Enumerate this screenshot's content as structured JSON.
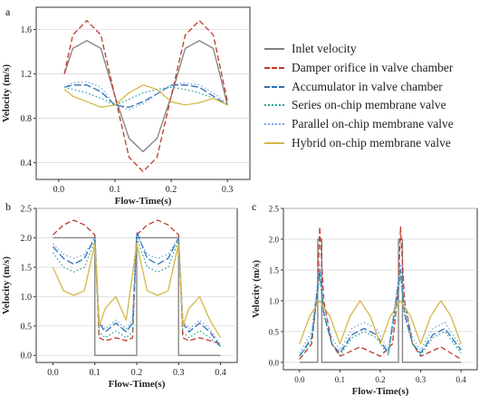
{
  "panels": {
    "a": "a",
    "b": "b",
    "c": "c"
  },
  "legend": [
    {
      "label": "Inlet velocity",
      "color": "#808080",
      "dash": "solid"
    },
    {
      "label": "Damper orifice in valve chamber",
      "color": "#c0392b",
      "dash": "dashed"
    },
    {
      "label": "Accumulator in valve chamber",
      "color": "#2e6fb7",
      "dash": "long-dash"
    },
    {
      "label": "Series on-chip membrane valve",
      "color": "#2aa198",
      "dash": "dotted"
    },
    {
      "label": "Parallel on-chip membrane valve",
      "color": "#7aa7e0",
      "dash": "dotted"
    },
    {
      "label": "Hybrid on-chip membrane valve",
      "color": "#d4b84a",
      "dash": "solid"
    }
  ],
  "chart_data": [
    {
      "id": "a",
      "type": "line",
      "xlabel": "Flow-Time(s)",
      "ylabel": "Velocity (m/s)",
      "xlim": [
        -0.04,
        0.34
      ],
      "ylim": [
        0.25,
        1.8
      ],
      "xticks": [
        0.0,
        0.1,
        0.2,
        0.3
      ],
      "xticklabels": [
        "0.0",
        "0.1",
        "0.2",
        "0.3"
      ],
      "yticks": [
        0.4,
        0.8,
        1.2,
        1.6
      ],
      "yticklabels": [
        "0.4",
        "0.8",
        "1.2",
        "1.6"
      ],
      "x": [
        0.01,
        0.025,
        0.05,
        0.075,
        0.1,
        0.125,
        0.15,
        0.175,
        0.2,
        0.225,
        0.25,
        0.275,
        0.3
      ],
      "series": [
        {
          "name": "Inlet velocity",
          "values": [
            1.2,
            1.43,
            1.5,
            1.43,
            1.0,
            0.62,
            0.5,
            0.62,
            1.0,
            1.43,
            1.5,
            1.43,
            0.92
          ]
        },
        {
          "name": "Damper orifice in valve chamber",
          "values": [
            1.2,
            1.55,
            1.68,
            1.55,
            1.0,
            0.45,
            0.32,
            0.45,
            1.0,
            1.55,
            1.68,
            1.55,
            0.95
          ]
        },
        {
          "name": "Accumulator in valve chamber",
          "values": [
            1.08,
            1.1,
            1.1,
            1.04,
            0.92,
            0.9,
            0.95,
            1.02,
            1.1,
            1.1,
            1.08,
            1.0,
            0.92
          ]
        },
        {
          "name": "Series on-chip membrane valve",
          "values": [
            1.08,
            1.06,
            1.03,
            0.98,
            0.92,
            0.97,
            1.03,
            1.06,
            1.08,
            1.06,
            1.03,
            0.98,
            0.92
          ]
        },
        {
          "name": "Parallel on-chip membrane valve",
          "values": [
            1.08,
            1.12,
            1.13,
            1.08,
            0.92,
            0.88,
            0.93,
            1.02,
            1.1,
            1.12,
            1.1,
            1.03,
            0.93
          ]
        },
        {
          "name": "Hybrid on-chip membrane valve",
          "values": [
            1.06,
            1.0,
            0.95,
            0.9,
            0.92,
            1.03,
            1.1,
            1.06,
            0.95,
            0.92,
            0.94,
            0.98,
            0.92
          ]
        }
      ]
    },
    {
      "id": "b",
      "type": "line",
      "xlabel": "Flow-Time(s)",
      "ylabel": "Velocity (m/s)",
      "xlim": [
        -0.04,
        0.44
      ],
      "ylim": [
        -0.12,
        2.5
      ],
      "xticks": [
        0.0,
        0.1,
        0.2,
        0.3,
        0.4
      ],
      "xticklabels": [
        "0.0",
        "0.1",
        "0.2",
        "0.3",
        "0.4"
      ],
      "yticks": [
        0.0,
        0.5,
        1.0,
        1.5,
        2.0,
        2.5
      ],
      "yticklabels": [
        "0.0",
        "0.5",
        "1.0",
        "1.5",
        "2.0",
        "2.5"
      ],
      "series": [
        {
          "name": "Inlet velocity",
          "x": [
            0.0,
            0.1,
            0.1,
            0.2,
            0.2,
            0.3,
            0.3,
            0.4
          ],
          "values": [
            2.0,
            2.0,
            0.0,
            0.0,
            2.0,
            2.0,
            0.0,
            0.0
          ]
        },
        {
          "name": "Damper orifice in valve chamber",
          "x": [
            0.0,
            0.025,
            0.05,
            0.075,
            0.1,
            0.11,
            0.125,
            0.15,
            0.175,
            0.19,
            0.2,
            0.225,
            0.25,
            0.275,
            0.3,
            0.31,
            0.325,
            0.35,
            0.375,
            0.4
          ],
          "values": [
            2.05,
            2.22,
            2.3,
            2.22,
            2.05,
            0.3,
            0.25,
            0.3,
            0.25,
            0.3,
            2.05,
            2.22,
            2.3,
            2.22,
            2.05,
            0.3,
            0.25,
            0.3,
            0.25,
            0.2
          ]
        },
        {
          "name": "Accumulator in valve chamber",
          "x": [
            0.0,
            0.025,
            0.05,
            0.075,
            0.1,
            0.11,
            0.125,
            0.15,
            0.175,
            0.19,
            0.2,
            0.225,
            0.25,
            0.275,
            0.3,
            0.31,
            0.325,
            0.35,
            0.375,
            0.4
          ],
          "values": [
            1.85,
            1.65,
            1.55,
            1.65,
            2.0,
            0.55,
            0.4,
            0.55,
            0.4,
            0.55,
            2.1,
            1.65,
            1.55,
            1.65,
            2.0,
            0.55,
            0.4,
            0.55,
            0.4,
            0.15
          ]
        },
        {
          "name": "Series on-chip membrane valve",
          "x": [
            0.0,
            0.025,
            0.05,
            0.075,
            0.1,
            0.11,
            0.125,
            0.15,
            0.175,
            0.19,
            0.2,
            0.225,
            0.25,
            0.275,
            0.3,
            0.31,
            0.325,
            0.35,
            0.375,
            0.4
          ],
          "values": [
            1.75,
            1.5,
            1.42,
            1.5,
            1.95,
            0.4,
            0.3,
            0.42,
            0.3,
            0.4,
            2.0,
            1.5,
            1.42,
            1.5,
            1.95,
            0.4,
            0.3,
            0.42,
            0.3,
            0.15
          ]
        },
        {
          "name": "Parallel on-chip membrane valve",
          "x": [
            0.0,
            0.025,
            0.05,
            0.075,
            0.1,
            0.11,
            0.125,
            0.15,
            0.175,
            0.19,
            0.2,
            0.225,
            0.25,
            0.275,
            0.3,
            0.31,
            0.325,
            0.35,
            0.375,
            0.4
          ],
          "values": [
            1.9,
            1.72,
            1.65,
            1.72,
            2.0,
            0.6,
            0.45,
            0.6,
            0.45,
            0.6,
            2.05,
            1.72,
            1.65,
            1.72,
            2.0,
            0.6,
            0.45,
            0.6,
            0.45,
            0.18
          ]
        },
        {
          "name": "Hybrid on-chip membrane valve",
          "x": [
            0.0,
            0.025,
            0.05,
            0.075,
            0.1,
            0.11,
            0.125,
            0.15,
            0.175,
            0.2,
            0.225,
            0.25,
            0.275,
            0.3,
            0.31,
            0.325,
            0.35,
            0.375,
            0.4
          ],
          "values": [
            1.5,
            1.1,
            1.02,
            1.1,
            1.9,
            0.5,
            0.8,
            1.0,
            0.6,
            1.9,
            1.1,
            1.02,
            1.1,
            1.9,
            0.5,
            0.8,
            1.0,
            0.6,
            0.3
          ]
        }
      ]
    },
    {
      "id": "c",
      "type": "line",
      "xlabel": "Flow-Time(s)",
      "ylabel": "Velocity (m/s)",
      "xlim": [
        -0.04,
        0.44
      ],
      "ylim": [
        -0.12,
        2.5
      ],
      "xticks": [
        0.0,
        0.1,
        0.2,
        0.3,
        0.4
      ],
      "xticklabels": [
        "0.0",
        "0.1",
        "0.2",
        "0.3",
        "0.4"
      ],
      "yticks": [
        0.0,
        0.5,
        1.0,
        1.5,
        2.0,
        2.5
      ],
      "yticklabels": [
        "0.0",
        "0.5",
        "1.0",
        "1.5",
        "2.0",
        "2.5"
      ],
      "series": [
        {
          "name": "Inlet velocity",
          "x": [
            0.0,
            0.045,
            0.045,
            0.055,
            0.055,
            0.245,
            0.245,
            0.255,
            0.255,
            0.4
          ],
          "values": [
            0.0,
            0.0,
            2.0,
            2.0,
            0.0,
            0.0,
            2.0,
            2.0,
            0.0,
            0.0
          ]
        },
        {
          "name": "Damper orifice in valve chamber",
          "x": [
            0.0,
            0.03,
            0.045,
            0.05,
            0.06,
            0.08,
            0.1,
            0.15,
            0.2,
            0.23,
            0.245,
            0.25,
            0.26,
            0.28,
            0.3,
            0.35,
            0.4
          ],
          "values": [
            0.05,
            0.3,
            1.2,
            2.2,
            1.0,
            0.3,
            0.1,
            0.25,
            0.1,
            0.3,
            1.2,
            2.2,
            1.0,
            0.3,
            0.1,
            0.25,
            0.05
          ]
        },
        {
          "name": "Accumulator in valve chamber",
          "x": [
            0.0,
            0.03,
            0.05,
            0.06,
            0.08,
            0.1,
            0.13,
            0.16,
            0.19,
            0.22,
            0.25,
            0.26,
            0.28,
            0.3,
            0.33,
            0.36,
            0.4
          ],
          "values": [
            0.1,
            0.4,
            1.5,
            0.8,
            0.3,
            0.15,
            0.45,
            0.55,
            0.45,
            0.15,
            1.5,
            0.8,
            0.3,
            0.15,
            0.45,
            0.55,
            0.2
          ]
        },
        {
          "name": "Series on-chip membrane valve",
          "x": [
            0.0,
            0.03,
            0.05,
            0.06,
            0.08,
            0.1,
            0.13,
            0.16,
            0.19,
            0.22,
            0.25,
            0.26,
            0.28,
            0.3,
            0.33,
            0.36,
            0.4
          ],
          "values": [
            0.1,
            0.35,
            1.4,
            0.75,
            0.3,
            0.12,
            0.4,
            0.5,
            0.4,
            0.12,
            1.4,
            0.75,
            0.3,
            0.12,
            0.4,
            0.5,
            0.15
          ]
        },
        {
          "name": "Parallel on-chip membrane valve",
          "x": [
            0.0,
            0.03,
            0.05,
            0.06,
            0.08,
            0.1,
            0.13,
            0.16,
            0.19,
            0.22,
            0.25,
            0.26,
            0.28,
            0.3,
            0.33,
            0.36,
            0.4
          ],
          "values": [
            0.15,
            0.5,
            1.6,
            0.9,
            0.4,
            0.2,
            0.55,
            0.65,
            0.55,
            0.2,
            1.6,
            0.9,
            0.4,
            0.2,
            0.55,
            0.65,
            0.25
          ]
        },
        {
          "name": "Hybrid on-chip membrane valve",
          "x": [
            0.0,
            0.025,
            0.05,
            0.075,
            0.1,
            0.125,
            0.15,
            0.175,
            0.2,
            0.225,
            0.25,
            0.275,
            0.3,
            0.325,
            0.35,
            0.375,
            0.4
          ],
          "values": [
            0.3,
            0.75,
            1.0,
            0.75,
            0.3,
            0.75,
            1.0,
            0.75,
            0.3,
            0.75,
            1.0,
            0.75,
            0.3,
            0.75,
            1.0,
            0.75,
            0.3
          ]
        }
      ]
    }
  ]
}
